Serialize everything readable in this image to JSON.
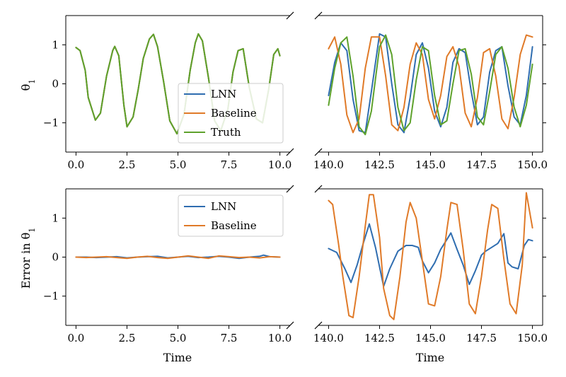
{
  "colors": {
    "LNN": "#2f6db0",
    "Baseline": "#e07a28",
    "Truth": "#5ea22c"
  },
  "chart_data": [
    {
      "id": "top-left",
      "type": "line",
      "xlim": [
        -0.5,
        10.5
      ],
      "ylim": [
        -1.75,
        1.75
      ],
      "xticks": [
        0.0,
        2.5,
        5.0,
        7.5,
        10.0
      ],
      "xtick_labels": [
        "0.0",
        "2.5",
        "5.0",
        "7.5",
        "10.0"
      ],
      "yticks": [
        -1,
        0,
        1
      ],
      "ytick_labels": [
        "−1",
        "0",
        "1"
      ],
      "ylabel": "θ₁",
      "xlabel": "",
      "legend": {
        "placement": "center-right",
        "entries": [
          "LNN",
          "Baseline",
          "Truth"
        ]
      },
      "series": [
        {
          "name": "LNN",
          "x": [
            0,
            0.2,
            0.45,
            0.6,
            0.95,
            1.2,
            1.5,
            1.8,
            1.9,
            2.1,
            2.35,
            2.5,
            2.8,
            3.05,
            3.3,
            3.6,
            3.8,
            4.0,
            4.3,
            4.6,
            4.95,
            5.3,
            5.6,
            5.85,
            6.0,
            6.2,
            6.5,
            6.8,
            7.1,
            7.45,
            7.7,
            7.95,
            8.2,
            8.5,
            8.85,
            9.15,
            9.45,
            9.7,
            9.9,
            10.0
          ],
          "y": [
            0.93,
            0.85,
            0.35,
            -0.35,
            -0.93,
            -0.75,
            0.2,
            0.85,
            0.96,
            0.72,
            -0.55,
            -1.1,
            -0.85,
            -0.15,
            0.65,
            1.15,
            1.27,
            0.95,
            0.05,
            -0.95,
            -1.28,
            -0.78,
            0.35,
            1.05,
            1.28,
            1.1,
            0.15,
            -0.95,
            -1.2,
            -0.65,
            0.3,
            0.85,
            0.9,
            -0.1,
            -0.9,
            -1.0,
            -0.15,
            0.75,
            0.9,
            0.72
          ]
        },
        {
          "name": "Baseline",
          "x": [
            0,
            0.2,
            0.45,
            0.6,
            0.95,
            1.2,
            1.5,
            1.8,
            1.9,
            2.1,
            2.35,
            2.5,
            2.8,
            3.05,
            3.3,
            3.6,
            3.8,
            4.0,
            4.3,
            4.6,
            4.95,
            5.3,
            5.6,
            5.85,
            6.0,
            6.2,
            6.5,
            6.8,
            7.1,
            7.45,
            7.7,
            7.95,
            8.2,
            8.5,
            8.85,
            9.15,
            9.45,
            9.7,
            9.9,
            10.0
          ],
          "y": [
            0.93,
            0.85,
            0.35,
            -0.35,
            -0.93,
            -0.75,
            0.2,
            0.85,
            0.96,
            0.72,
            -0.55,
            -1.1,
            -0.85,
            -0.15,
            0.65,
            1.15,
            1.27,
            0.95,
            0.05,
            -0.95,
            -1.28,
            -0.78,
            0.35,
            1.05,
            1.28,
            1.1,
            0.15,
            -0.95,
            -1.2,
            -0.65,
            0.3,
            0.85,
            0.9,
            -0.1,
            -0.9,
            -1.0,
            -0.15,
            0.75,
            0.9,
            0.72
          ]
        },
        {
          "name": "Truth",
          "x": [
            0,
            0.2,
            0.45,
            0.6,
            0.95,
            1.2,
            1.5,
            1.8,
            1.9,
            2.1,
            2.35,
            2.5,
            2.8,
            3.05,
            3.3,
            3.6,
            3.8,
            4.0,
            4.3,
            4.6,
            4.95,
            5.3,
            5.6,
            5.85,
            6.0,
            6.2,
            6.5,
            6.8,
            7.1,
            7.45,
            7.7,
            7.95,
            8.2,
            8.5,
            8.85,
            9.15,
            9.45,
            9.7,
            9.9,
            10.0
          ],
          "y": [
            0.93,
            0.85,
            0.35,
            -0.35,
            -0.93,
            -0.75,
            0.2,
            0.85,
            0.96,
            0.72,
            -0.55,
            -1.1,
            -0.85,
            -0.15,
            0.65,
            1.15,
            1.27,
            0.95,
            0.05,
            -0.95,
            -1.28,
            -0.78,
            0.35,
            1.05,
            1.28,
            1.1,
            0.15,
            -0.95,
            -1.2,
            -0.65,
            0.3,
            0.85,
            0.9,
            -0.1,
            -0.9,
            -1.0,
            -0.15,
            0.75,
            0.9,
            0.72
          ]
        }
      ]
    },
    {
      "id": "top-right",
      "type": "line",
      "xlim": [
        139.5,
        150.5
      ],
      "ylim": [
        -1.75,
        1.75
      ],
      "xticks": [
        140.0,
        142.5,
        145.0,
        147.5,
        150.0
      ],
      "xtick_labels": [
        "140.0",
        "142.5",
        "145.0",
        "147.5",
        "150.0"
      ],
      "yticks": [
        -1,
        0,
        1
      ],
      "ytick_labels": [
        "",
        "",
        ""
      ],
      "ylabel": "",
      "xlabel": "",
      "series": [
        {
          "name": "LNN",
          "x": [
            140.0,
            140.3,
            140.6,
            140.9,
            141.2,
            141.5,
            141.8,
            142.1,
            142.5,
            142.8,
            143.1,
            143.4,
            143.7,
            144.0,
            144.3,
            144.6,
            144.9,
            145.2,
            145.5,
            145.8,
            146.1,
            146.4,
            146.7,
            147.0,
            147.3,
            147.6,
            147.9,
            148.2,
            148.5,
            148.8,
            149.1,
            149.4,
            149.7,
            150.0
          ],
          "y": [
            -0.3,
            0.55,
            1.05,
            0.85,
            -0.4,
            -1.2,
            -1.25,
            -0.2,
            1.28,
            1.2,
            0.0,
            -1.05,
            -1.25,
            -0.35,
            0.75,
            1.05,
            0.4,
            -0.7,
            -1.1,
            -0.6,
            0.55,
            0.9,
            0.8,
            -0.2,
            -1.05,
            -0.85,
            0.3,
            0.85,
            0.95,
            -0.05,
            -0.85,
            -1.05,
            -0.3,
            0.95
          ]
        },
        {
          "name": "Baseline",
          "x": [
            140.0,
            140.3,
            140.6,
            140.9,
            141.2,
            141.5,
            141.8,
            142.1,
            142.5,
            142.8,
            143.1,
            143.4,
            143.7,
            144.0,
            144.3,
            144.6,
            144.9,
            145.2,
            145.5,
            145.8,
            146.1,
            146.4,
            146.7,
            147.0,
            147.3,
            147.6,
            147.9,
            148.2,
            148.5,
            148.8,
            149.1,
            149.4,
            149.7,
            150.0
          ],
          "y": [
            0.9,
            1.2,
            0.5,
            -0.8,
            -1.25,
            -0.9,
            0.4,
            1.2,
            1.2,
            0.2,
            -1.05,
            -1.2,
            -0.6,
            0.5,
            1.05,
            0.75,
            -0.4,
            -0.9,
            -0.3,
            0.7,
            0.95,
            0.45,
            -0.75,
            -1.1,
            -0.35,
            0.8,
            0.9,
            0.2,
            -0.9,
            -1.15,
            -0.35,
            0.75,
            1.25,
            1.2
          ]
        },
        {
          "name": "Truth",
          "x": [
            140.0,
            140.3,
            140.6,
            140.9,
            141.2,
            141.5,
            141.8,
            142.1,
            142.5,
            142.8,
            143.1,
            143.4,
            143.7,
            144.0,
            144.3,
            144.6,
            144.9,
            145.2,
            145.5,
            145.8,
            146.1,
            146.4,
            146.7,
            147.0,
            147.3,
            147.6,
            147.9,
            148.2,
            148.5,
            148.8,
            149.1,
            149.4,
            149.7,
            150.0
          ],
          "y": [
            -0.55,
            0.4,
            1.05,
            1.2,
            0.2,
            -1.1,
            -1.3,
            -0.7,
            0.95,
            1.25,
            0.75,
            -0.6,
            -1.2,
            -1.0,
            0.1,
            0.95,
            0.85,
            -0.3,
            -1.05,
            -0.95,
            0.0,
            0.85,
            0.9,
            0.25,
            -0.85,
            -1.05,
            -0.2,
            0.75,
            0.95,
            0.4,
            -0.6,
            -1.1,
            -0.55,
            0.5
          ]
        }
      ]
    },
    {
      "id": "bottom-left",
      "type": "line",
      "xlim": [
        -0.5,
        10.5
      ],
      "ylim": [
        -1.75,
        1.75
      ],
      "xticks": [
        0.0,
        2.5,
        5.0,
        7.5,
        10.0
      ],
      "xtick_labels": [
        "0.0",
        "2.5",
        "5.0",
        "7.5",
        "10.0"
      ],
      "yticks": [
        -1,
        0,
        1
      ],
      "ytick_labels": [
        "−1",
        "0",
        "1"
      ],
      "ylabel": "Error in θ₁",
      "xlabel": "Time",
      "legend": {
        "placement": "top-right",
        "entries": [
          "LNN",
          "Baseline"
        ]
      },
      "series": [
        {
          "name": "LNN",
          "x": [
            0,
            0.5,
            1,
            1.5,
            2,
            2.5,
            3,
            3.5,
            4,
            4.5,
            5,
            5.5,
            6,
            6.5,
            7,
            7.5,
            8,
            8.5,
            9,
            9.2,
            9.5,
            10
          ],
          "y": [
            0.0,
            0.0,
            -0.01,
            0.0,
            0.01,
            -0.02,
            0.0,
            0.01,
            0.02,
            -0.02,
            0.0,
            0.02,
            -0.01,
            0.0,
            0.02,
            0.0,
            -0.03,
            0.0,
            0.02,
            0.05,
            0.01,
            0.0
          ]
        },
        {
          "name": "Baseline",
          "x": [
            0,
            0.5,
            1,
            1.5,
            2,
            2.5,
            3,
            3.5,
            4,
            4.5,
            5,
            5.5,
            6,
            6.5,
            7,
            7.5,
            8,
            8.5,
            9,
            9.5,
            10
          ],
          "y": [
            0.0,
            -0.01,
            0.0,
            0.01,
            -0.01,
            -0.03,
            0.0,
            0.02,
            -0.01,
            -0.03,
            0.0,
            0.03,
            0.0,
            -0.03,
            0.03,
            0.01,
            -0.01,
            0.0,
            -0.02,
            0.01,
            0.0
          ]
        }
      ]
    },
    {
      "id": "bottom-right",
      "type": "line",
      "xlim": [
        139.5,
        150.5
      ],
      "ylim": [
        -1.75,
        1.75
      ],
      "xticks": [
        140.0,
        142.5,
        145.0,
        147.5,
        150.0
      ],
      "xtick_labels": [
        "140.0",
        "142.5",
        "145.0",
        "147.5",
        "150.0"
      ],
      "yticks": [
        -1,
        0,
        1
      ],
      "ytick_labels": [
        "",
        "",
        ""
      ],
      "ylabel": "",
      "xlabel": "Time",
      "series": [
        {
          "name": "LNN",
          "x": [
            140.0,
            140.4,
            140.8,
            141.1,
            141.4,
            141.7,
            142.0,
            142.3,
            142.7,
            143.0,
            143.4,
            143.8,
            144.1,
            144.4,
            144.6,
            144.9,
            145.2,
            145.5,
            145.8,
            146.0,
            146.3,
            146.6,
            146.9,
            147.2,
            147.5,
            147.7,
            148.0,
            148.3,
            148.6,
            148.8,
            149.0,
            149.3,
            149.6,
            149.8,
            150.0
          ],
          "y": [
            0.22,
            0.12,
            -0.3,
            -0.65,
            -0.2,
            0.35,
            0.85,
            0.25,
            -0.75,
            -0.3,
            0.15,
            0.3,
            0.3,
            0.25,
            -0.1,
            -0.4,
            -0.15,
            0.2,
            0.45,
            0.62,
            0.2,
            -0.2,
            -0.7,
            -0.35,
            0.05,
            0.15,
            0.25,
            0.35,
            0.6,
            -0.15,
            -0.25,
            -0.3,
            0.3,
            0.45,
            0.42
          ]
        },
        {
          "name": "Baseline",
          "x": [
            140.0,
            140.2,
            140.5,
            140.7,
            141.0,
            141.2,
            141.5,
            141.8,
            142.0,
            142.2,
            142.5,
            142.7,
            143.0,
            143.2,
            143.5,
            143.8,
            144.0,
            144.3,
            144.6,
            144.9,
            145.2,
            145.5,
            145.8,
            146.0,
            146.3,
            146.6,
            146.9,
            147.2,
            147.5,
            147.8,
            148.0,
            148.3,
            148.6,
            148.9,
            149.2,
            149.5,
            149.7,
            150.0
          ],
          "y": [
            1.45,
            1.35,
            0.3,
            -0.5,
            -1.5,
            -1.55,
            -0.5,
            0.8,
            1.6,
            1.6,
            0.5,
            -0.8,
            -1.5,
            -1.6,
            -0.5,
            0.9,
            1.4,
            1.0,
            -0.1,
            -1.2,
            -1.25,
            -0.5,
            0.7,
            1.4,
            1.35,
            0.2,
            -1.2,
            -1.45,
            -0.5,
            0.7,
            1.35,
            1.25,
            -0.05,
            -1.2,
            -1.45,
            -0.2,
            1.65,
            0.75
          ]
        }
      ]
    }
  ]
}
